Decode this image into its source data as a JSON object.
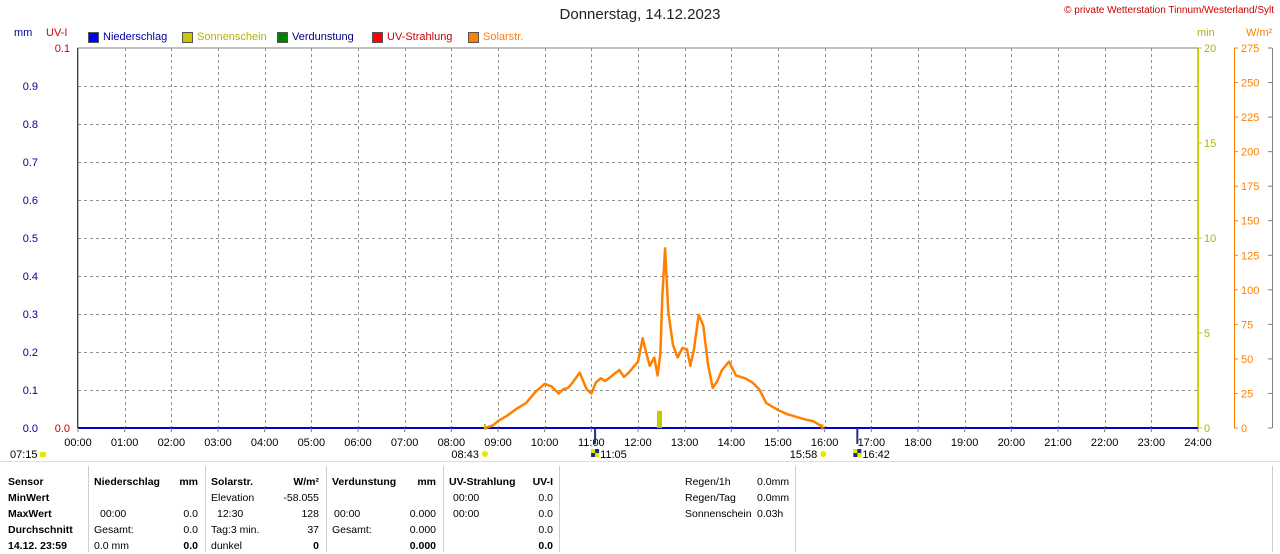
{
  "header": {
    "title": "Donnerstag, 14.12.2023",
    "copyright": "© private Wetterstation Tinnum/Westerland/Sylt"
  },
  "units": {
    "mm": "mm",
    "uvi": "UV-I",
    "min": "min",
    "wm2": "W/m²"
  },
  "legend": [
    {
      "label": "Niederschlag",
      "color": "#0000ff",
      "text_color": "#0000a0"
    },
    {
      "label": "Sonnenschein",
      "color": "#c8c800",
      "text_color": "#b4b400"
    },
    {
      "label": "Verdunstung",
      "color": "#008000",
      "text_color": "#000080"
    },
    {
      "label": "UV-Strahlung",
      "color": "#ff0000",
      "text_color": "#cc0000"
    },
    {
      "label": "Solarstr.",
      "color": "#ff8000",
      "text_color": "#ff8000"
    }
  ],
  "chart_data": {
    "type": "line",
    "xlabel": "",
    "x_ticks": [
      "00:00",
      "01:00",
      "02:00",
      "03:00",
      "04:00",
      "05:00",
      "06:00",
      "07:00",
      "08:00",
      "09:00",
      "10:00",
      "11:00",
      "12:00",
      "13:00",
      "14:00",
      "15:00",
      "16:00",
      "17:00",
      "18:00",
      "19:00",
      "20:00",
      "21:00",
      "22:00",
      "23:00",
      "24:00"
    ],
    "xlim": [
      0,
      24
    ],
    "axes": {
      "mm_ticks": [
        "0.9",
        "0.8",
        "0.7",
        "0.6",
        "0.5",
        "0.4",
        "0.3",
        "0.2",
        "0.1"
      ],
      "uvi_ticks": [
        "0.1",
        "0.0"
      ],
      "min_ticks": [
        "20",
        "15",
        "10",
        "5",
        "0"
      ],
      "wm2_ticks": [
        "275",
        "250",
        "225",
        "200",
        "175",
        "150",
        "125",
        "100",
        "75",
        "50",
        "25",
        "0"
      ],
      "mm_ylim": [
        0,
        1
      ],
      "uvi_ylim": [
        0,
        0.1
      ],
      "min_ylim": [
        0,
        20
      ],
      "wm2_ylim": [
        0,
        275
      ]
    },
    "grid": true,
    "series": [
      {
        "name": "Solarstr.",
        "color": "#ff8000",
        "axis": "wm2",
        "x": [
          8.73,
          8.9,
          9.0,
          9.2,
          9.4,
          9.6,
          9.8,
          10.0,
          10.15,
          10.3,
          10.4,
          10.5,
          10.6,
          10.75,
          10.9,
          11.0,
          11.1,
          11.2,
          11.3,
          11.45,
          11.6,
          11.7,
          11.8,
          11.9,
          12.0,
          12.1,
          12.15,
          12.25,
          12.35,
          12.42,
          12.48,
          12.52,
          12.58,
          12.65,
          12.75,
          12.85,
          12.95,
          13.05,
          13.12,
          13.2,
          13.3,
          13.4,
          13.5,
          13.6,
          13.7,
          13.8,
          13.95,
          14.1,
          14.2,
          14.3,
          14.45,
          14.6,
          14.75,
          14.9,
          15.0,
          15.2,
          15.4,
          15.6,
          15.75,
          15.9,
          15.97
        ],
        "y": [
          0,
          2,
          5,
          9,
          14,
          18,
          26,
          32,
          30,
          25,
          28,
          29,
          33,
          40,
          28,
          25,
          33,
          36,
          34,
          38,
          42,
          37,
          40,
          44,
          48,
          65,
          58,
          45,
          51,
          38,
          54,
          95,
          130,
          84,
          60,
          51,
          58,
          57,
          45,
          57,
          82,
          74,
          46,
          29,
          34,
          42,
          48,
          38,
          37,
          36,
          33,
          28,
          18,
          15,
          13,
          10,
          8,
          6,
          5,
          2,
          0
        ]
      },
      {
        "name": "Sonnenschein",
        "color": "#c8c800",
        "axis": "min",
        "bars": [
          {
            "x": 12.45,
            "value": 0.9
          }
        ],
        "markers": [
          8.72,
          15.95
        ]
      }
    ],
    "sun_events": [
      {
        "label": "07:15",
        "x": 7.25,
        "type": "sunrise"
      },
      {
        "label": "08:43",
        "x": 8.72,
        "type": "sunshine-start"
      },
      {
        "label": "11:05",
        "x": 11.08,
        "type": "event"
      },
      {
        "label": "15:58",
        "x": 15.97,
        "type": "sunshine-end"
      },
      {
        "label": "16:42",
        "x": 16.7,
        "type": "sunset"
      }
    ]
  },
  "stats": {
    "sensor": {
      "header": "Sensor",
      "min": "MinWert",
      "max": "MaxWert",
      "avg": "Durchschnitt",
      "date": "14.12. 23:59"
    },
    "niederschlag": {
      "header": "Niederschlag",
      "unit": "mm",
      "r1_label": "",
      "r1_val": "",
      "r2_label": "00:00",
      "r2_val": "0.0",
      "r3_label": "Gesamt:",
      "r3_val": "0.0",
      "r4_label": "0.0 mm",
      "r4_val": "0.0"
    },
    "solar": {
      "header": "Solarstr.",
      "unit": "W/m²",
      "r1_label": "Elevation",
      "r1_val": "-58.055",
      "r2_label": "12:30",
      "r2_val": "128",
      "r3_label": "Tag:3 min.",
      "r3_val": "37",
      "r4_label": "dunkel",
      "r4_val": "0"
    },
    "verdunstung": {
      "header": "Verdunstung",
      "unit": "mm",
      "r1_label": "",
      "r1_val": "",
      "r2_label": "00:00",
      "r2_val": "0.000",
      "r3_label": "Gesamt:",
      "r3_val": "0.000",
      "r4_label": "",
      "r4_val": "0.000"
    },
    "uv": {
      "header": "UV-Strahlung",
      "unit": "UV-I",
      "r1_label": "00:00",
      "r1_val": "0.0",
      "r2_label": "00:00",
      "r2_val": "0.0",
      "r3_label": "",
      "r3_val": "0.0",
      "r4_label": "",
      "r4_val": "0.0"
    },
    "summary": [
      {
        "label": "Regen/1h",
        "value": "0.0mm"
      },
      {
        "label": "Regen/Tag",
        "value": "0.0mm"
      },
      {
        "label": "Sonnenschein",
        "value": "0.03h"
      }
    ]
  }
}
